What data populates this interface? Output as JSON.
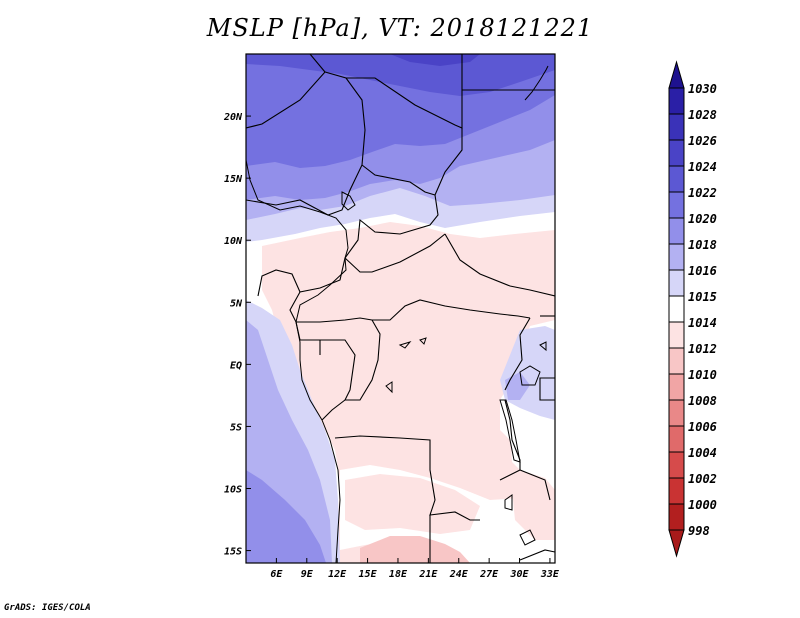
{
  "title": "MSLP [hPa], VT: 2018121221",
  "credit": "GrADS: IGES/COLA",
  "map": {
    "lon_range": [
      3,
      33.5
    ],
    "lat_range": [
      -16,
      25
    ],
    "lon_ticks": [
      {
        "value": 6,
        "label": "6E"
      },
      {
        "value": 9,
        "label": "9E"
      },
      {
        "value": 12,
        "label": "12E"
      },
      {
        "value": 15,
        "label": "15E"
      },
      {
        "value": 18,
        "label": "18E"
      },
      {
        "value": 21,
        "label": "21E"
      },
      {
        "value": 24,
        "label": "24E"
      },
      {
        "value": 27,
        "label": "27E"
      },
      {
        "value": 30,
        "label": "30E"
      },
      {
        "value": 33,
        "label": "33E"
      }
    ],
    "lat_ticks": [
      {
        "value": 20,
        "label": "20N"
      },
      {
        "value": 15,
        "label": "15N"
      },
      {
        "value": 10,
        "label": "10N"
      },
      {
        "value": 5,
        "label": "5N"
      },
      {
        "value": 0,
        "label": "EQ"
      },
      {
        "value": -5,
        "label": "5S"
      },
      {
        "value": -10,
        "label": "10S"
      },
      {
        "value": -15,
        "label": "15S"
      }
    ]
  },
  "colorbar": {
    "levels": [
      {
        "label": "1030",
        "color": "#1e128f"
      },
      {
        "label": "1028",
        "color": "#2a1fa6"
      },
      {
        "label": "1026",
        "color": "#3a32b8"
      },
      {
        "label": "1024",
        "color": "#4a43c6"
      },
      {
        "label": "1022",
        "color": "#5c58d3"
      },
      {
        "label": "1020",
        "color": "#7471e0"
      },
      {
        "label": "1018",
        "color": "#928fea"
      },
      {
        "label": "1016",
        "color": "#b3b1f2"
      },
      {
        "label": "1015",
        "color": "#d6d6f8"
      },
      {
        "label": "1014",
        "color": "#ffffff"
      },
      {
        "label": "1012",
        "color": "#fde3e3"
      },
      {
        "label": "1010",
        "color": "#f8c6c6"
      },
      {
        "label": "1008",
        "color": "#f1a5a5"
      },
      {
        "label": "1006",
        "color": "#e98888"
      },
      {
        "label": "1004",
        "color": "#e06a6a"
      },
      {
        "label": "1002",
        "color": "#d64b4b"
      },
      {
        "label": "1000",
        "color": "#c93333"
      },
      {
        "label": "998",
        "color": "#b21f1f"
      }
    ],
    "bottom_color": "#a81a1a"
  }
}
